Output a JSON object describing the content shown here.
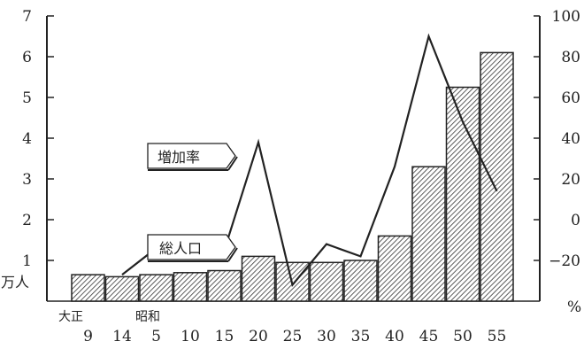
{
  "chart_data": {
    "type": "bar+line",
    "categories": [
      "9",
      "14",
      "5",
      "10",
      "15",
      "20",
      "25",
      "30",
      "35",
      "40",
      "45",
      "50",
      "55"
    ],
    "era_labels": [
      {
        "text": "大正",
        "category_index": 0
      },
      {
        "text": "昭和",
        "category_index": 2
      }
    ],
    "left_axis": {
      "unit": "万人",
      "ticks": [
        "1",
        "2",
        "3",
        "4",
        "5",
        "6",
        "7"
      ],
      "ylim": [
        0,
        7
      ]
    },
    "right_axis": {
      "unit": "%",
      "ticks": [
        "-20",
        "0",
        "20",
        "40",
        "60",
        "80",
        "100"
      ],
      "ylim": [
        -40,
        100
      ]
    },
    "series": [
      {
        "name": "総人口",
        "type": "bar",
        "axis": "left",
        "values": [
          0.65,
          0.6,
          0.65,
          0.7,
          0.75,
          1.1,
          0.95,
          0.95,
          1.0,
          1.6,
          3.3,
          5.25,
          6.1
        ]
      },
      {
        "name": "増加率",
        "type": "line",
        "axis": "right",
        "values": [
          null,
          -27,
          -14,
          -11,
          -15,
          38,
          -32,
          -12,
          -18,
          26,
          90,
          48,
          14
        ]
      }
    ],
    "colors": {
      "bar_fill_hatch": "#333333",
      "line": "#222222",
      "axis": "#222222"
    }
  }
}
